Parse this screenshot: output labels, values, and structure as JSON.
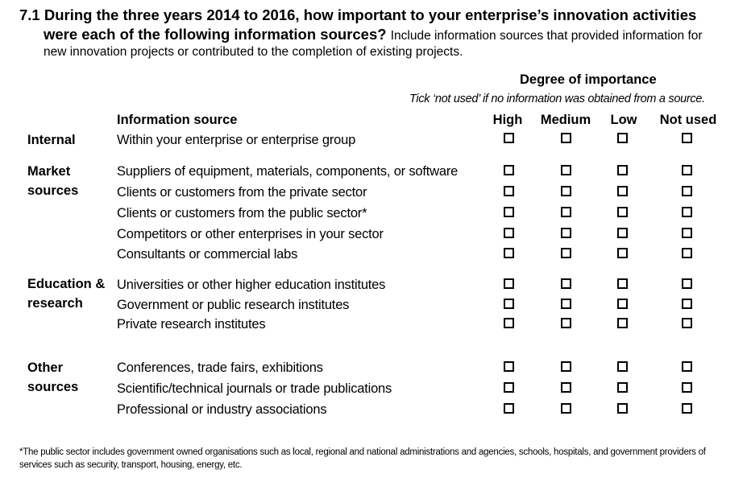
{
  "question": {
    "number": "7.1",
    "line1": "During the three years 2014 to 2016, how important to your enterprise’s innovation activities",
    "line2_bold": "were each of the following information sources?",
    "line2_note": "Include information sources that provided information for",
    "line3_note": "new innovation projects or contributed to the completion of existing projects."
  },
  "importance": {
    "title": "Degree of importance",
    "instruction": "Tick ‘not used’ if no information was obtained from a source.",
    "columns": [
      "High",
      "Medium",
      "Low",
      "Not used"
    ]
  },
  "source_header": "Information source",
  "categories": [
    {
      "label_lines": [
        "Internal"
      ],
      "items": [
        "Within your enterprise or enterprise group"
      ]
    },
    {
      "label_lines": [
        "Market",
        "sources"
      ],
      "items": [
        "Suppliers of equipment, materials, components, or software",
        "Clients or customers from the private sector",
        "Clients or customers from the public sector*",
        "Competitors or other enterprises in your sector",
        "Consultants or commercial labs"
      ]
    },
    {
      "label_lines": [
        "Education &",
        "research"
      ],
      "items": [
        "Universities or other higher education institutes",
        "Government or public research institutes",
        "Private research institutes"
      ]
    },
    {
      "label_lines": [
        "Other",
        "sources"
      ],
      "items": [
        "Conferences, trade fairs, exhibitions",
        "Scientific/technical journals or trade publications",
        "Professional or industry associations"
      ]
    }
  ],
  "footnote": "*The public sector includes government owned organisations such as local, regional and national administrations and agencies, schools, hospitals, and government providers of services such as security, transport, housing, energy, etc."
}
